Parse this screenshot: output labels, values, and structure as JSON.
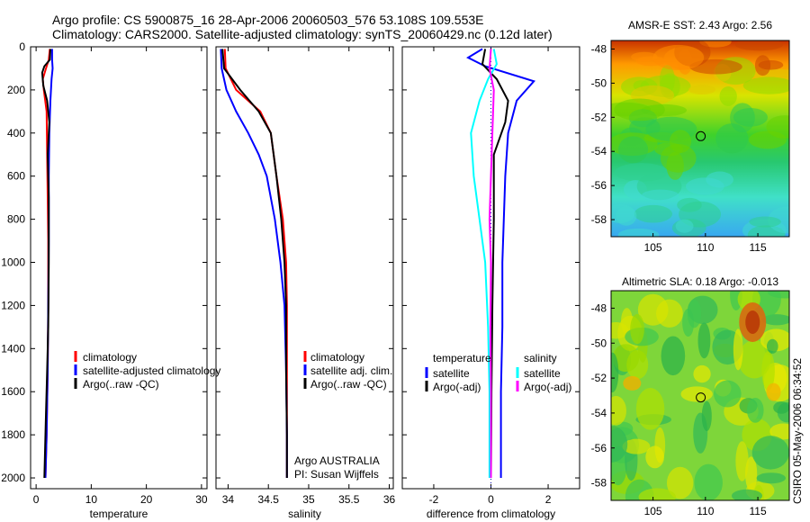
{
  "figure": {
    "title_line1": "Argo profile: CS 5900875_16 28-Apr-2006 20060503_576 53.108S 109.553E",
    "title_line2": "Climatology: CARS2000. Satellite-adjusted climatology: synTS_20060429.nc (0.12d later)",
    "timestamp": "CSIRO 05-May-2006 06:34:52"
  },
  "chart_data": [
    {
      "id": "temperature",
      "type": "line",
      "xlabel": "temperature",
      "ylabel": "",
      "xlim": [
        -1,
        31
      ],
      "ylim": [
        0,
        2050
      ],
      "y_reversed": true,
      "xticks": [
        "0",
        "10",
        "20",
        "30"
      ],
      "xtick_values": [
        0,
        10,
        20,
        30
      ],
      "yticks": [
        "0",
        "200",
        "400",
        "600",
        "800",
        "1000",
        "1200",
        "1400",
        "1600",
        "1800",
        "2000"
      ],
      "ytick_values": [
        0,
        200,
        400,
        600,
        800,
        1000,
        1200,
        1400,
        1600,
        1800,
        2000
      ],
      "legend": [
        "climatology",
        "satellite-adjusted climatology",
        "Argo(..raw -QC)"
      ],
      "series": [
        {
          "name": "climatology",
          "color": "#ff0000",
          "points": [
            [
              2.5,
              10
            ],
            [
              2.3,
              60
            ],
            [
              1.8,
              100
            ],
            [
              1.2,
              150
            ],
            [
              1.4,
              200
            ],
            [
              1.9,
              300
            ],
            [
              2.0,
              500
            ],
            [
              2.1,
              700
            ],
            [
              2.2,
              900
            ],
            [
              2.2,
              1200
            ],
            [
              2.1,
              1500
            ],
            [
              1.9,
              1800
            ],
            [
              1.7,
              2000
            ]
          ]
        },
        {
          "name": "satellite-adjusted climatology",
          "color": "#0000ff",
          "points": [
            [
              2.9,
              10
            ],
            [
              2.9,
              60
            ],
            [
              3.0,
              100
            ],
            [
              2.8,
              150
            ],
            [
              2.6,
              250
            ],
            [
              2.4,
              400
            ],
            [
              2.3,
              600
            ],
            [
              2.3,
              900
            ],
            [
              2.2,
              1200
            ],
            [
              2.1,
              1500
            ],
            [
              1.9,
              1800
            ],
            [
              1.7,
              2000
            ]
          ]
        },
        {
          "name": "Argo(..raw -QC)",
          "color": "#000000",
          "points": [
            [
              2.6,
              10
            ],
            [
              2.5,
              60
            ],
            [
              1.5,
              90
            ],
            [
              1.1,
              120
            ],
            [
              1.3,
              180
            ],
            [
              2.0,
              250
            ],
            [
              2.4,
              350
            ],
            [
              2.1,
              500
            ],
            [
              2.3,
              700
            ],
            [
              2.3,
              1000
            ],
            [
              2.2,
              1300
            ],
            [
              2.0,
              1500
            ],
            [
              1.8,
              1700
            ],
            [
              1.6,
              1900
            ],
            [
              1.5,
              2000
            ]
          ]
        }
      ]
    },
    {
      "id": "salinity",
      "type": "line",
      "xlabel": "salinity",
      "ylabel": "",
      "xlim": [
        33.85,
        36.05
      ],
      "ylim": [
        0,
        2050
      ],
      "y_reversed": true,
      "xticks": [
        "34",
        "34.5",
        "35",
        "35.5",
        "36"
      ],
      "xtick_values": [
        34,
        34.5,
        35,
        35.5,
        36
      ],
      "legend": [
        "climatology",
        "satellite adj. clim.",
        "Argo(..raw -QC)"
      ],
      "annotation": [
        "Argo AUSTRALIA",
        "PI: Susan Wijffels"
      ],
      "series": [
        {
          "name": "climatology",
          "color": "#ff0000",
          "points": [
            [
              33.96,
              10
            ],
            [
              33.97,
              100
            ],
            [
              34.1,
              200
            ],
            [
              34.4,
              300
            ],
            [
              34.53,
              400
            ],
            [
              34.6,
              600
            ],
            [
              34.68,
              800
            ],
            [
              34.72,
              1000
            ],
            [
              34.73,
              1200
            ],
            [
              34.73,
              1500
            ],
            [
              34.73,
              1800
            ],
            [
              34.73,
              2000
            ]
          ]
        },
        {
          "name": "satellite adj. clim.",
          "color": "#0000ff",
          "points": [
            [
              33.91,
              10
            ],
            [
              33.92,
              100
            ],
            [
              33.98,
              200
            ],
            [
              34.1,
              300
            ],
            [
              34.25,
              400
            ],
            [
              34.38,
              500
            ],
            [
              34.48,
              600
            ],
            [
              34.58,
              800
            ],
            [
              34.65,
              1000
            ],
            [
              34.7,
              1200
            ],
            [
              34.72,
              1500
            ],
            [
              34.73,
              1800
            ],
            [
              34.73,
              2000
            ]
          ]
        },
        {
          "name": "Argo(..raw -QC)",
          "color": "#000000",
          "points": [
            [
              33.93,
              10
            ],
            [
              33.95,
              100
            ],
            [
              34.15,
              200
            ],
            [
              34.38,
              300
            ],
            [
              34.53,
              400
            ],
            [
              34.6,
              600
            ],
            [
              34.66,
              800
            ],
            [
              34.7,
              1000
            ],
            [
              34.72,
              1200
            ],
            [
              34.72,
              1500
            ],
            [
              34.73,
              1800
            ],
            [
              34.73,
              2000
            ]
          ]
        }
      ]
    },
    {
      "id": "difference",
      "type": "line",
      "xlabel": "difference from climatology",
      "ylabel": "",
      "xlim": [
        -3.1,
        3.1
      ],
      "ylim": [
        0,
        2050
      ],
      "y_reversed": true,
      "xticks": [
        "-2",
        "0",
        "2"
      ],
      "xtick_values": [
        -2,
        0,
        2
      ],
      "legend_groups": [
        {
          "heading": "temperature",
          "entries": [
            "satellite",
            "Argo(-adj)"
          ]
        },
        {
          "heading": "salinity",
          "entries": [
            "satellite",
            "Argo(-adj)"
          ]
        }
      ],
      "series": [
        {
          "name": "temperature satellite",
          "color": "#0000ff",
          "points": [
            [
              -0.3,
              10
            ],
            [
              -0.8,
              50
            ],
            [
              -0.2,
              90
            ],
            [
              1.5,
              160
            ],
            [
              0.9,
              250
            ],
            [
              0.6,
              400
            ],
            [
              0.5,
              600
            ],
            [
              0.45,
              800
            ],
            [
              0.4,
              1000
            ],
            [
              0.4,
              1300
            ],
            [
              0.35,
              1600
            ],
            [
              0.35,
              2000
            ]
          ]
        },
        {
          "name": "temperature Argo(-adj)",
          "color": "#000000",
          "points": [
            [
              -0.2,
              10
            ],
            [
              -0.3,
              80
            ],
            [
              0.2,
              150
            ],
            [
              0.6,
              250
            ],
            [
              0.5,
              350
            ],
            [
              0.1,
              500
            ],
            [
              0.1,
              800
            ],
            [
              0.05,
              1200
            ],
            [
              0.02,
              1600
            ],
            [
              0.0,
              2000
            ]
          ]
        },
        {
          "name": "salinity satellite",
          "color": "#00ffff",
          "points": [
            [
              0.1,
              10
            ],
            [
              0.2,
              80
            ],
            [
              -0.1,
              150
            ],
            [
              -0.4,
              250
            ],
            [
              -0.7,
              400
            ],
            [
              -0.6,
              600
            ],
            [
              -0.4,
              800
            ],
            [
              -0.2,
              1000
            ],
            [
              -0.1,
              1300
            ],
            [
              -0.05,
              1600
            ],
            [
              -0.05,
              2000
            ]
          ]
        },
        {
          "name": "salinity Argo(-adj)",
          "color": "#ff00ff",
          "points": [
            [
              0.0,
              10
            ],
            [
              -0.05,
              100
            ],
            [
              0.1,
              200
            ],
            [
              0.05,
              400
            ],
            [
              0.0,
              600
            ],
            [
              -0.05,
              800
            ],
            [
              0.0,
              1000
            ],
            [
              -0.02,
              1300
            ],
            [
              0.0,
              1600
            ],
            [
              0.0,
              2000
            ]
          ]
        }
      ]
    },
    {
      "id": "sst-map",
      "type": "heatmap",
      "title": "AMSR-E SST: 2.43 Argo: 2.56",
      "xlim": [
        101,
        118
      ],
      "ylim": [
        -59,
        -47.5
      ],
      "xticks": [
        "105",
        "110",
        "115"
      ],
      "xtick_values": [
        105,
        110,
        115
      ],
      "yticks": [
        "-48",
        "-50",
        "-52",
        "-54",
        "-56",
        "-58"
      ],
      "ytick_values": [
        -48,
        -50,
        -52,
        -54,
        -56,
        -58
      ],
      "marker": {
        "lon": 109.553,
        "lat": -53.108
      }
    },
    {
      "id": "sla-map",
      "type": "heatmap",
      "title": "Altimetric SLA: 0.18 Argo: -0.013",
      "xlim": [
        101,
        118
      ],
      "ylim": [
        -59,
        -47
      ],
      "xticks": [
        "105",
        "110",
        "115"
      ],
      "xtick_values": [
        105,
        110,
        115
      ],
      "yticks": [
        "-48",
        "-50",
        "-52",
        "-54",
        "-56",
        "-58"
      ],
      "ytick_values": [
        -48,
        -50,
        -52,
        -54,
        -56,
        -58
      ],
      "marker": {
        "lon": 109.553,
        "lat": -53.108
      }
    }
  ]
}
